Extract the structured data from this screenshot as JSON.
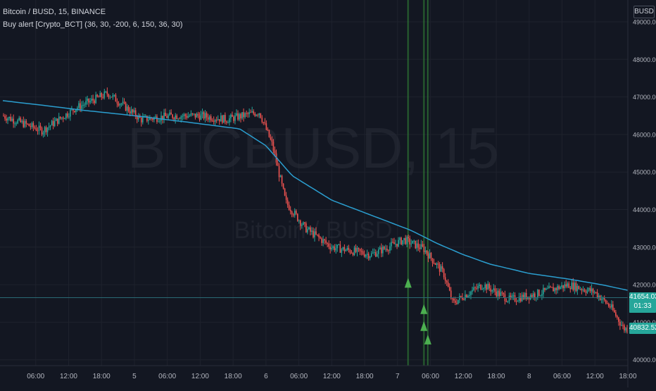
{
  "header": {
    "symbol_line": "Bitcoin / BUSD, 15, BINANCE",
    "indicator_line": "Buy alert [Crypto_BCT] (36, 30, -200, 6, 150, 36, 30)",
    "currency": "BUSD"
  },
  "watermark": {
    "ticker": "BTCBUSD, 15",
    "name": "Bitcoin / BUSD"
  },
  "price_tags": {
    "crosshair_price": "41654.03",
    "countdown": "01:33",
    "last_price": "40832.52"
  },
  "colors": {
    "background": "#131722",
    "grid": "#1e222d",
    "up_candle": "#26a69a",
    "down_candle": "#ef5350",
    "ma_line": "#2b9ecf",
    "signal_band": "#1b5e20",
    "buy_arrow": "#4caf50",
    "price_tag": "#26a69a"
  },
  "chart_data": {
    "type": "candlestick",
    "title": "Bitcoin / BUSD, 15, BINANCE",
    "y_ticks": [
      "49000.00",
      "48000.00",
      "47000.00",
      "46000.00",
      "45000.00",
      "44000.00",
      "43000.00",
      "42000.00",
      "41000.00",
      "40000.00"
    ],
    "x_ticks": [
      "06:00",
      "12:00",
      "18:00",
      "5",
      "06:00",
      "12:00",
      "18:00",
      "6",
      "06:00",
      "12:00",
      "18:00",
      "7",
      "06:00",
      "12:00",
      "18:00",
      "8",
      "06:00",
      "12:00",
      "18:00"
    ],
    "ylim": [
      39900,
      49200
    ],
    "x_day_range": [
      0,
      4.75
    ],
    "ohlc_keypoints": {
      "t_day": [
        0,
        0.3,
        0.55,
        0.8,
        1.05,
        1.3,
        1.5,
        1.7,
        1.95,
        2.05,
        2.15,
        2.3,
        2.5,
        2.8,
        3.05,
        3.2,
        3.35,
        3.42,
        3.5,
        3.65,
        3.85,
        4.05,
        4.3,
        4.5,
        4.62,
        4.72
      ],
      "price": [
        46500,
        46100,
        46700,
        47100,
        46400,
        46500,
        46500,
        46400,
        46600,
        45700,
        44200,
        43500,
        43000,
        42800,
        43200,
        42950,
        42300,
        41500,
        41700,
        42000,
        41600,
        41750,
        42000,
        41800,
        41400,
        40830
      ]
    },
    "ma_line": {
      "name": "",
      "t_day": [
        0,
        0.3,
        0.6,
        1.0,
        1.4,
        1.8,
        2.0,
        2.2,
        2.5,
        2.8,
        3.1,
        3.3,
        3.5,
        3.7,
        4.0,
        4.3,
        4.55,
        4.75
      ],
      "price": [
        46900,
        46780,
        46650,
        46500,
        46330,
        46150,
        45700,
        44900,
        44250,
        43850,
        43450,
        43100,
        42800,
        42550,
        42300,
        42150,
        42000,
        41850
      ]
    },
    "signal_bands_day": [
      3.08,
      3.2,
      3.23
    ],
    "buy_arrows": [
      {
        "t_day": 3.08,
        "price": 42050
      },
      {
        "t_day": 3.2,
        "price": 41350
      },
      {
        "t_day": 3.2,
        "price": 40900
      },
      {
        "t_day": 3.23,
        "price": 40540
      }
    ],
    "crosshair_price": 41654.03,
    "last_price": 40832.52,
    "grid": true
  }
}
